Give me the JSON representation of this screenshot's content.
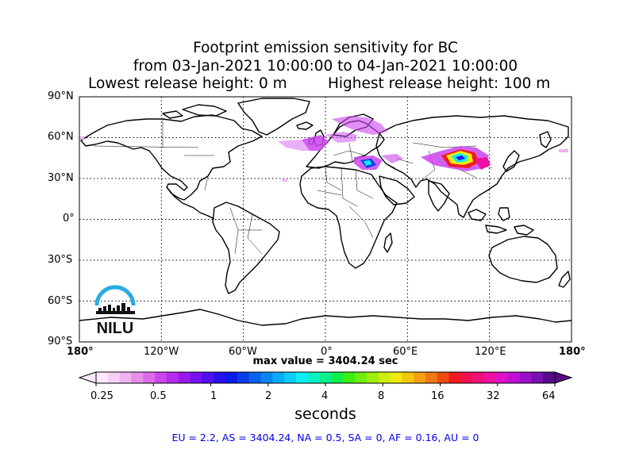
{
  "title": {
    "line1": "Footprint emission sensitivity for BC",
    "line2": "from 03-Jan-2021 10:00:00 to 04-Jan-2021 10:00:00",
    "line3_left": "Lowest release height: 0 m",
    "line3_right": "Highest release height: 100 m"
  },
  "axes": {
    "lat_labels": [
      "90°N",
      "60°N",
      "30°N",
      "0°",
      "30°S",
      "60°S",
      "90°S"
    ],
    "lon_labels": [
      "180°",
      "120°W",
      "60°W",
      "0°",
      "60°E",
      "120°E",
      "180°"
    ],
    "grid": true
  },
  "logo": {
    "text": "NILU",
    "color": "#29abe2"
  },
  "max_value_text": "max value = 3404.24 sec",
  "colorbar": {
    "tick_labels": [
      "0.25",
      "0.5",
      "1",
      "2",
      "4",
      "8",
      "16",
      "32",
      "64"
    ],
    "unit_label": "seconds",
    "colors": [
      "#fde8fd",
      "#f7d0f7",
      "#efb2ef",
      "#e68fe6",
      "#dc6bea",
      "#cc44ee",
      "#b52aee",
      "#9a18ee",
      "#7710ee",
      "#5010ee",
      "#2a10ee",
      "#0a1ae8",
      "#0a3eea",
      "#0a62ee",
      "#0a86f2",
      "#0aaaf6",
      "#0acef8",
      "#0aeef4",
      "#0af0c4",
      "#0af08a",
      "#10ee4a",
      "#3aee10",
      "#6eee10",
      "#9eee10",
      "#ceee10",
      "#f0ea10",
      "#f0c810",
      "#f0a010",
      "#f07810",
      "#f04a10",
      "#f01a20",
      "#f01050",
      "#f0107a",
      "#ee10a4",
      "#de10c8",
      "#c010d8",
      "#9a10c8",
      "#7810b0",
      "#580a88"
    ]
  },
  "summary_text": "EU = 2.2,  AS = 3404.24,  NA = 0.5,  SA = 0,  AF = 0.16,  AU = 0",
  "colors": {
    "summary": "#0000ee",
    "plume_main": "#cc44ee",
    "plume_light": "#efb2ef"
  }
}
